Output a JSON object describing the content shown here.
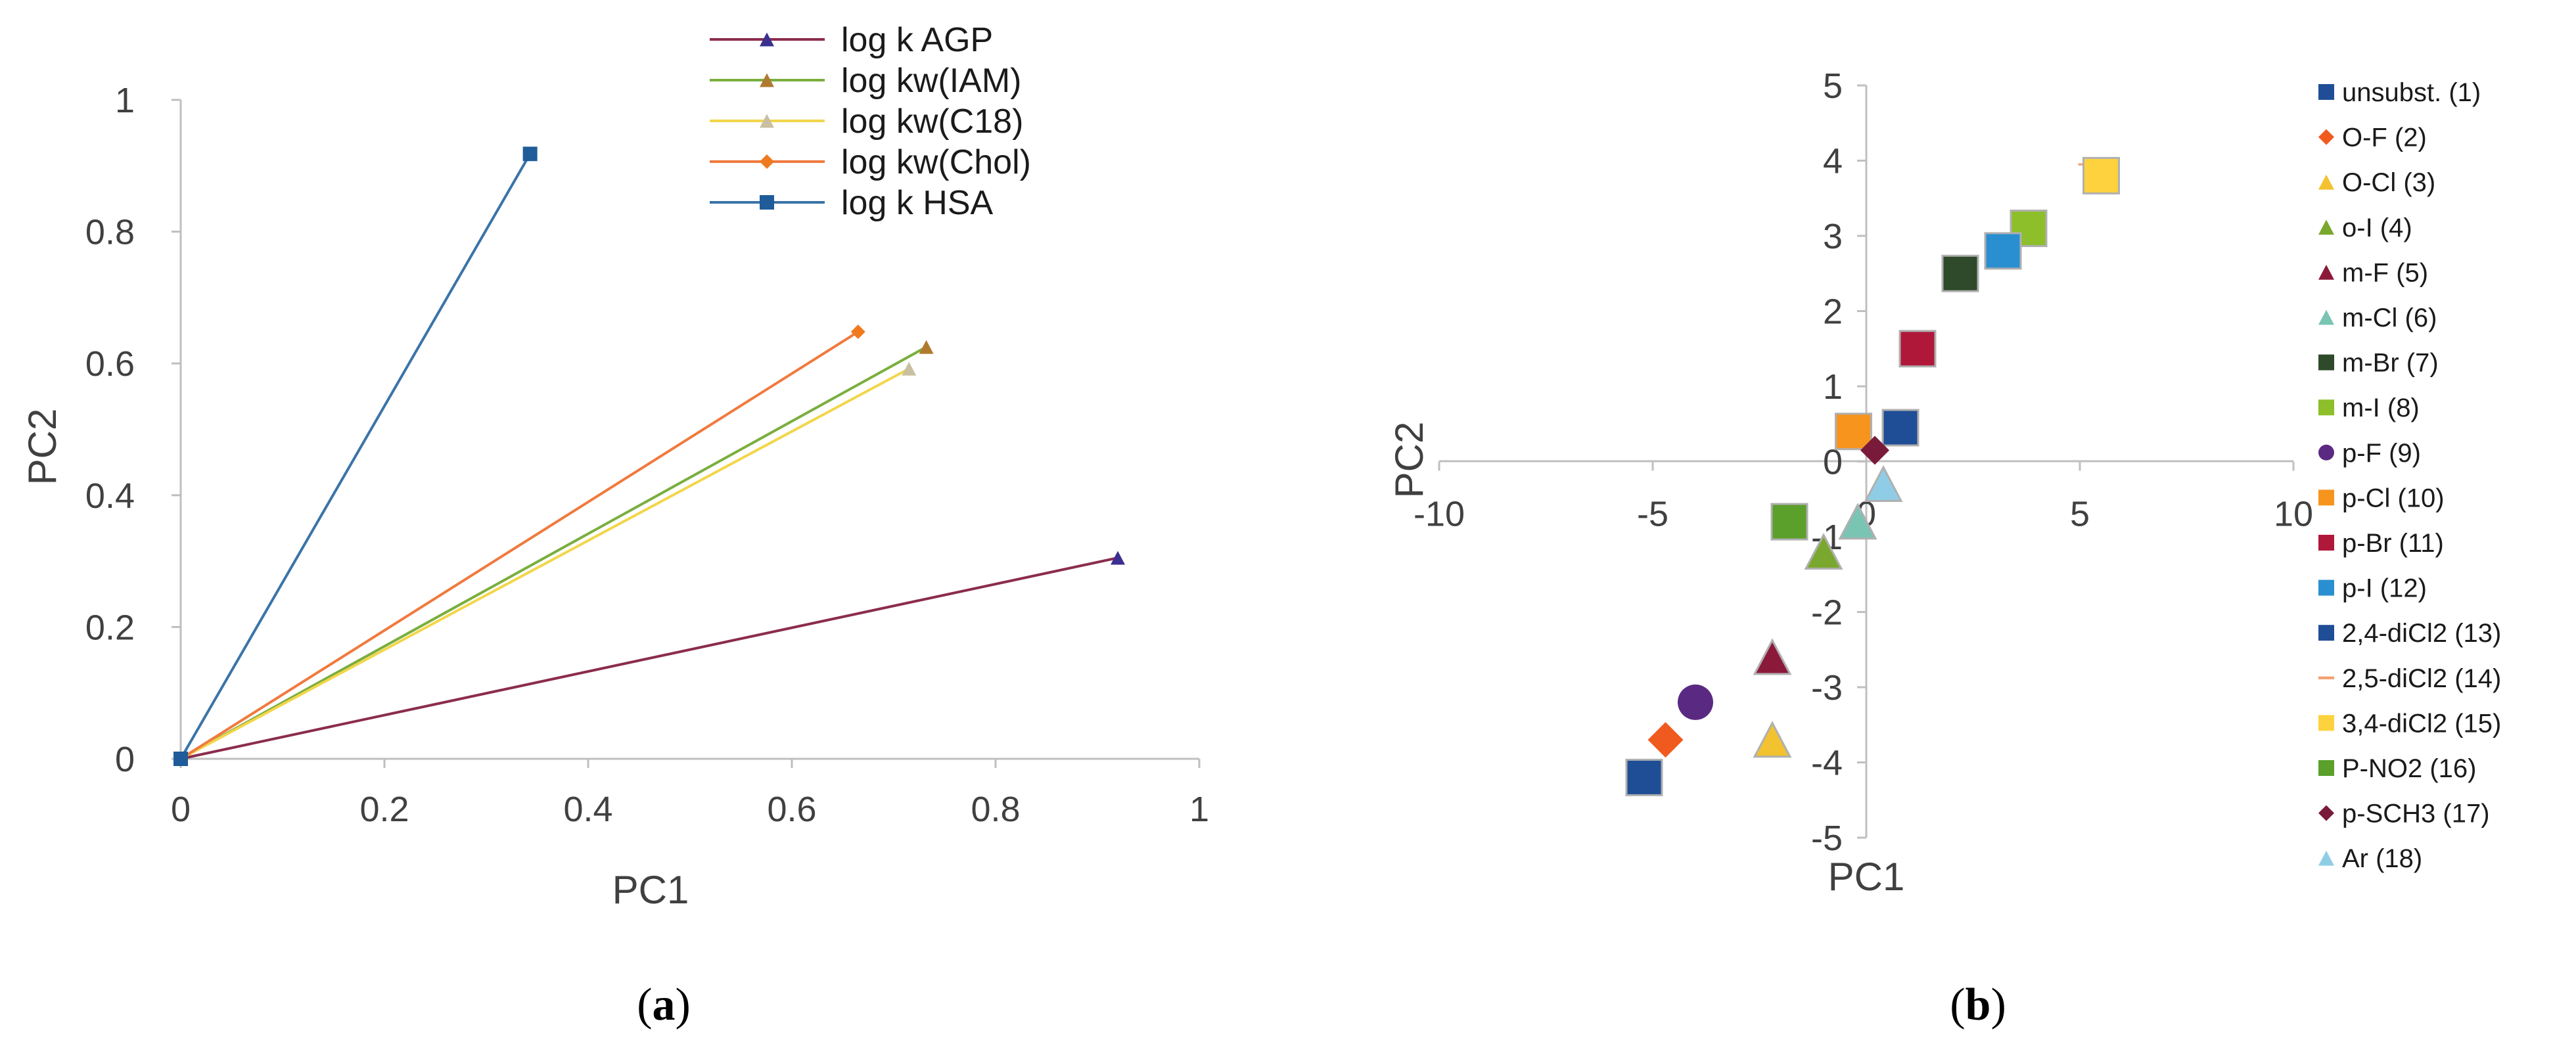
{
  "chart_data": [
    {
      "type": "line",
      "panel_label": {
        "open": "(",
        "letter": "a",
        "close": ")"
      },
      "title": "",
      "xlabel": "PC1",
      "ylabel": "PC2",
      "xlim": [
        0,
        1
      ],
      "ylim": [
        0,
        1
      ],
      "x_ticks": [
        "0",
        "0.2",
        "0.4",
        "0.6",
        "0.8",
        "1"
      ],
      "y_ticks": [
        "0",
        "0.2",
        "0.4",
        "0.6",
        "0.8",
        "1"
      ],
      "x_tick_values": [
        0,
        0.2,
        0.4,
        0.6,
        0.8,
        1
      ],
      "y_tick_values": [
        0,
        0.2,
        0.4,
        0.6,
        0.8,
        1
      ],
      "legend_position": "top-center",
      "series": [
        {
          "name": "log k AGP",
          "color": "#8B2C4E",
          "marker": "triangle",
          "marker_color": "#3B2F8F",
          "x": [
            0,
            0.92
          ],
          "y": [
            0,
            0.305
          ]
        },
        {
          "name": "log kw(IAM)",
          "color": "#7AAE3E",
          "marker": "triangle",
          "marker_color": "#B07A2E",
          "x": [
            0,
            0.732
          ],
          "y": [
            0,
            0.625
          ]
        },
        {
          "name": "log kw(C18)",
          "color": "#F2D64B",
          "marker": "triangle",
          "marker_color": "#C8C0A0",
          "x": [
            0,
            0.715
          ],
          "y": [
            0,
            0.592
          ]
        },
        {
          "name": "log kw(Chol)",
          "color": "#F07A3E",
          "marker": "diamond",
          "marker_color": "#F07A1E",
          "x": [
            0,
            0.665
          ],
          "y": [
            0,
            0.648
          ]
        },
        {
          "name": "log k HSA",
          "color": "#3A74A8",
          "marker": "square",
          "marker_color": "#1F5C99",
          "x": [
            0,
            0.343
          ],
          "y": [
            0,
            0.918
          ]
        }
      ]
    },
    {
      "type": "scatter",
      "panel_label": {
        "open": "(",
        "letter": "b",
        "close": ")"
      },
      "title": "",
      "xlabel": "PC1",
      "ylabel": "PC2",
      "xlim": [
        -10,
        10
      ],
      "ylim": [
        -5,
        5
      ],
      "x_ticks": [
        "-10",
        "-5",
        "0",
        "5",
        "10"
      ],
      "y_ticks": [
        "-5",
        "-4",
        "-3",
        "-2",
        "-1",
        "0",
        "1",
        "2",
        "3",
        "4",
        "5"
      ],
      "x_tick_values": [
        -10,
        -5,
        0,
        5,
        10
      ],
      "y_tick_values": [
        -5,
        -4,
        -3,
        -2,
        -1,
        0,
        1,
        2,
        3,
        4,
        5
      ],
      "legend_position": "right",
      "series": [
        {
          "name": "unsubst. (1)",
          "marker": "square",
          "color": "#1F4E96",
          "x": 0.8,
          "y": 0.45
        },
        {
          "name": "O-F (2)",
          "marker": "diamond",
          "color": "#F05A1E",
          "x": -4.7,
          "y": -3.7
        },
        {
          "name": "O-Cl (3)",
          "marker": "triangle",
          "color": "#F2C230",
          "x": -2.2,
          "y": -3.7
        },
        {
          "name": "o-I (4)",
          "marker": "triangle",
          "color": "#7AA82E",
          "x": -1.0,
          "y": -1.2
        },
        {
          "name": "m-F (5)",
          "marker": "triangle",
          "color": "#8B1A3A",
          "x": -2.2,
          "y": -2.6
        },
        {
          "name": "m-Cl (6)",
          "marker": "triangle",
          "color": "#7AC4B4",
          "x": -0.2,
          "y": -0.8
        },
        {
          "name": "m-Br (7)",
          "marker": "square",
          "color": "#2E4A2A",
          "x": 2.2,
          "y": 2.5
        },
        {
          "name": "m-I (8)",
          "marker": "square",
          "color": "#8CBF2A",
          "x": 3.8,
          "y": 3.1
        },
        {
          "name": "p-F (9)",
          "marker": "circle",
          "color": "#5A2A82",
          "x": -4.0,
          "y": -3.2
        },
        {
          "name": "p-Cl (10)",
          "marker": "square",
          "color": "#F7941D",
          "x": -0.3,
          "y": 0.4
        },
        {
          "name": "p-Br (11)",
          "marker": "square",
          "color": "#B0183A",
          "x": 1.2,
          "y": 1.5
        },
        {
          "name": "p-I (12)",
          "marker": "square",
          "color": "#2A8FD0",
          "x": 3.2,
          "y": 2.8
        },
        {
          "name": "2,4-diCl2 (13)",
          "marker": "square",
          "color": "#1F4E96",
          "x": -5.2,
          "y": -4.2
        },
        {
          "name": "2,5-diCl2 (14)",
          "marker": "dash",
          "color": "#F4A070",
          "x": 5.1,
          "y": 3.95
        },
        {
          "name": "3,4-diCl2 (15)",
          "marker": "square",
          "color": "#FDD23E",
          "x": 5.5,
          "y": 3.8
        },
        {
          "name": "P-NO2 (16)",
          "marker": "square",
          "color": "#5AA02A",
          "x": -1.8,
          "y": -0.8
        },
        {
          "name": "p-SCH3 (17)",
          "marker": "diamond",
          "color": "#7A1A3A",
          "x": 0.2,
          "y": 0.15
        },
        {
          "name": "Ar (18)",
          "marker": "triangle",
          "color": "#8FCDE6",
          "x": 0.4,
          "y": -0.3
        }
      ]
    }
  ]
}
